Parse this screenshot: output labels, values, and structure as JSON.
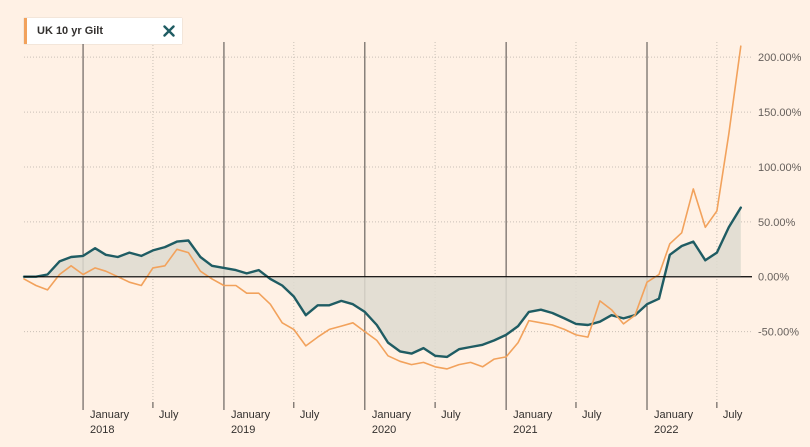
{
  "legend": {
    "label": "UK 10 yr Gilt",
    "color": "#f2a25c",
    "close_icon": "close-x-icon",
    "close_color": "#1f5c63"
  },
  "chart_data": {
    "type": "line",
    "title": "",
    "xlabel": "",
    "ylabel": "",
    "ylim": [
      -105,
      212
    ],
    "xlim": [
      "2017-08-01",
      "2022-09-30"
    ],
    "grid": true,
    "legend_position": "top-left",
    "y_ticks": [
      {
        "value": 200,
        "label": "200.00%"
      },
      {
        "value": 150,
        "label": "150.00%"
      },
      {
        "value": 100,
        "label": "100.00%"
      },
      {
        "value": 50,
        "label": "50.00%"
      },
      {
        "value": 0,
        "label": "0.00%"
      },
      {
        "value": -50,
        "label": "-50.00%"
      }
    ],
    "year_ticks": [
      {
        "date": "2018-01-01",
        "month": "January",
        "year": "2018"
      },
      {
        "date": "2019-01-01",
        "month": "January",
        "year": "2019"
      },
      {
        "date": "2020-01-01",
        "month": "January",
        "year": "2020"
      },
      {
        "date": "2021-01-01",
        "month": "January",
        "year": "2021"
      },
      {
        "date": "2022-01-01",
        "month": "January",
        "year": "2022"
      }
    ],
    "month_ticks": [
      {
        "date": "2018-07-01",
        "label": "July"
      },
      {
        "date": "2019-07-01",
        "label": "July"
      },
      {
        "date": "2020-07-01",
        "label": "July"
      },
      {
        "date": "2021-07-01",
        "label": "July"
      },
      {
        "date": "2022-07-01",
        "label": "July"
      }
    ],
    "series": [
      {
        "color": "#1f5c63",
        "fill": "#dedbd0",
        "points": [
          [
            "2017-08-01",
            0
          ],
          [
            "2017-09-01",
            0
          ],
          [
            "2017-10-01",
            2
          ],
          [
            "2017-11-01",
            14
          ],
          [
            "2017-12-01",
            18
          ],
          [
            "2018-01-01",
            19
          ],
          [
            "2018-02-01",
            26
          ],
          [
            "2018-03-01",
            20
          ],
          [
            "2018-04-01",
            18
          ],
          [
            "2018-05-01",
            22
          ],
          [
            "2018-06-01",
            19
          ],
          [
            "2018-07-01",
            24
          ],
          [
            "2018-08-01",
            27
          ],
          [
            "2018-09-01",
            32
          ],
          [
            "2018-10-01",
            33
          ],
          [
            "2018-11-01",
            18
          ],
          [
            "2018-12-01",
            10
          ],
          [
            "2019-01-01",
            8
          ],
          [
            "2019-02-01",
            6
          ],
          [
            "2019-03-01",
            3
          ],
          [
            "2019-04-01",
            6
          ],
          [
            "2019-05-01",
            -2
          ],
          [
            "2019-06-01",
            -8
          ],
          [
            "2019-07-01",
            -18
          ],
          [
            "2019-08-01",
            -35
          ],
          [
            "2019-09-01",
            -26
          ],
          [
            "2019-10-01",
            -26
          ],
          [
            "2019-11-01",
            -22
          ],
          [
            "2019-12-01",
            -25
          ],
          [
            "2020-01-01",
            -32
          ],
          [
            "2020-02-01",
            -44
          ],
          [
            "2020-03-01",
            -60
          ],
          [
            "2020-04-01",
            -68
          ],
          [
            "2020-05-01",
            -70
          ],
          [
            "2020-06-01",
            -65
          ],
          [
            "2020-07-01",
            -72
          ],
          [
            "2020-08-01",
            -73
          ],
          [
            "2020-09-01",
            -66
          ],
          [
            "2020-10-01",
            -64
          ],
          [
            "2020-11-01",
            -62
          ],
          [
            "2020-12-01",
            -58
          ],
          [
            "2021-01-01",
            -53
          ],
          [
            "2021-02-01",
            -45
          ],
          [
            "2021-03-01",
            -32
          ],
          [
            "2021-04-01",
            -30
          ],
          [
            "2021-05-01",
            -33
          ],
          [
            "2021-06-01",
            -38
          ],
          [
            "2021-07-01",
            -43
          ],
          [
            "2021-08-01",
            -44
          ],
          [
            "2021-09-01",
            -41
          ],
          [
            "2021-10-01",
            -35
          ],
          [
            "2021-11-01",
            -38
          ],
          [
            "2021-12-01",
            -35
          ],
          [
            "2022-01-01",
            -25
          ],
          [
            "2022-02-01",
            -20
          ],
          [
            "2022-03-01",
            20
          ],
          [
            "2022-04-01",
            28
          ],
          [
            "2022-05-01",
            32
          ],
          [
            "2022-06-01",
            15
          ],
          [
            "2022-07-01",
            22
          ],
          [
            "2022-08-01",
            45
          ],
          [
            "2022-09-01",
            63
          ]
        ]
      },
      {
        "color": "#f2a25c",
        "points": [
          [
            "2017-08-01",
            -2
          ],
          [
            "2017-09-01",
            -8
          ],
          [
            "2017-10-01",
            -12
          ],
          [
            "2017-11-01",
            2
          ],
          [
            "2017-12-01",
            10
          ],
          [
            "2018-01-01",
            2
          ],
          [
            "2018-02-01",
            8
          ],
          [
            "2018-03-01",
            5
          ],
          [
            "2018-04-01",
            0
          ],
          [
            "2018-05-01",
            -5
          ],
          [
            "2018-06-01",
            -8
          ],
          [
            "2018-07-01",
            8
          ],
          [
            "2018-08-01",
            10
          ],
          [
            "2018-09-01",
            25
          ],
          [
            "2018-10-01",
            22
          ],
          [
            "2018-11-01",
            5
          ],
          [
            "2018-12-01",
            -2
          ],
          [
            "2019-01-01",
            -8
          ],
          [
            "2019-02-01",
            -8
          ],
          [
            "2019-03-01",
            -15
          ],
          [
            "2019-04-01",
            -15
          ],
          [
            "2019-05-01",
            -25
          ],
          [
            "2019-06-01",
            -42
          ],
          [
            "2019-07-01",
            -48
          ],
          [
            "2019-08-01",
            -63
          ],
          [
            "2019-09-01",
            -55
          ],
          [
            "2019-10-01",
            -48
          ],
          [
            "2019-11-01",
            -45
          ],
          [
            "2019-12-01",
            -42
          ],
          [
            "2020-01-01",
            -50
          ],
          [
            "2020-02-01",
            -58
          ],
          [
            "2020-03-01",
            -72
          ],
          [
            "2020-04-01",
            -77
          ],
          [
            "2020-05-01",
            -80
          ],
          [
            "2020-06-01",
            -78
          ],
          [
            "2020-07-01",
            -82
          ],
          [
            "2020-08-01",
            -84
          ],
          [
            "2020-09-01",
            -80
          ],
          [
            "2020-10-01",
            -78
          ],
          [
            "2020-11-01",
            -82
          ],
          [
            "2020-12-01",
            -75
          ],
          [
            "2021-01-01",
            -73
          ],
          [
            "2021-02-01",
            -60
          ],
          [
            "2021-03-01",
            -40
          ],
          [
            "2021-04-01",
            -42
          ],
          [
            "2021-05-01",
            -44
          ],
          [
            "2021-06-01",
            -48
          ],
          [
            "2021-07-01",
            -53
          ],
          [
            "2021-08-01",
            -55
          ],
          [
            "2021-09-01",
            -22
          ],
          [
            "2021-10-01",
            -30
          ],
          [
            "2021-11-01",
            -43
          ],
          [
            "2021-12-01",
            -35
          ],
          [
            "2022-01-01",
            -5
          ],
          [
            "2022-02-01",
            2
          ],
          [
            "2022-03-01",
            30
          ],
          [
            "2022-04-01",
            40
          ],
          [
            "2022-05-01",
            80
          ],
          [
            "2022-06-01",
            45
          ],
          [
            "2022-07-01",
            60
          ],
          [
            "2022-08-01",
            130
          ],
          [
            "2022-09-01",
            210
          ]
        ]
      }
    ]
  }
}
